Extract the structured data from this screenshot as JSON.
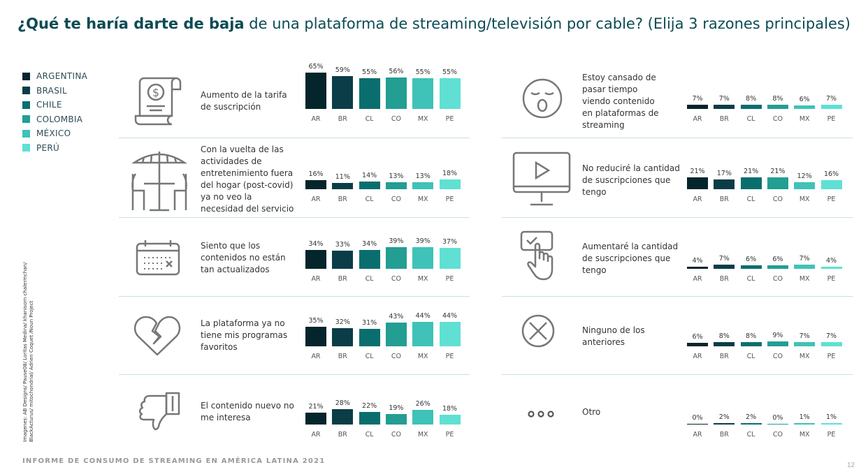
{
  "title": {
    "bold": "¿Qué te haría darte de baja",
    "rest": " de una plataforma de streaming/televisión por cable? (Elija 3 razones principales)"
  },
  "legend": [
    {
      "label": "ARGENTINA",
      "color": "#03252b"
    },
    {
      "label": "BRASIL",
      "color": "#0a3d47"
    },
    {
      "label": "CHILE",
      "color": "#0b6e6e"
    },
    {
      "label": "COLOMBIA",
      "color": "#229e93"
    },
    {
      "label": "MÉXICO",
      "color": "#3fc2b7"
    },
    {
      "label": "PERÚ",
      "color": "#5fe0d3"
    }
  ],
  "categories": [
    "AR",
    "BR",
    "CL",
    "CO",
    "MX",
    "PE"
  ],
  "credits": "Imagenes: AB Designs/ Pause08/ Loritas Medina/ khanisorn chalermchan/ BlackActurus/ mitochondrial/ Adrien Coquet /Noun Project",
  "footer": "INFORME DE CONSUMO DE STREAMING EN AMÉRICA LATINA 2021",
  "page_number": "12",
  "chart_data": [
    {
      "type": "bar",
      "label": "Aumento de la tarifa de suscripción",
      "icon": "dollar-bill-icon",
      "values": [
        65,
        59,
        55,
        56,
        55,
        55
      ],
      "value_labels": [
        "65%",
        "59%",
        "55%",
        "56%",
        "55%",
        "55%"
      ]
    },
    {
      "type": "bar",
      "label": "Con la vuelta de las actividades de entretenimiento fuera del hogar (post-covid) ya no veo la necesidad del servicio",
      "icon": "cafe-table-icon",
      "values": [
        16,
        11,
        14,
        13,
        13,
        18
      ],
      "value_labels": [
        "16%",
        "11%",
        "14%",
        "13%",
        "13%",
        "18%"
      ]
    },
    {
      "type": "bar",
      "label": "Siento que los contenidos no están tan actualizados",
      "icon": "calendar-icon",
      "values": [
        34,
        33,
        34,
        39,
        39,
        37
      ],
      "value_labels": [
        "34%",
        "33%",
        "34%",
        "39%",
        "39%",
        "37%"
      ]
    },
    {
      "type": "bar",
      "label": "La plataforma ya no tiene mis programas favoritos",
      "icon": "broken-heart-icon",
      "values": [
        35,
        32,
        31,
        43,
        44,
        44
      ],
      "value_labels": [
        "35%",
        "32%",
        "31%",
        "43%",
        "44%",
        "44%"
      ]
    },
    {
      "type": "bar",
      "label": "El contenido nuevo no me interesa",
      "icon": "thumbs-down-icon",
      "values": [
        21,
        28,
        22,
        19,
        26,
        18
      ],
      "value_labels": [
        "21%",
        "28%",
        "22%",
        "19%",
        "26%",
        "18%"
      ]
    },
    {
      "type": "bar",
      "label": "Estoy cansado de pasar tiempo viendo contenido en plataformas de streaming",
      "icon": "yawning-face-icon",
      "values": [
        7,
        7,
        8,
        8,
        6,
        7
      ],
      "value_labels": [
        "7%",
        "7%",
        "8%",
        "8%",
        "6%",
        "7%"
      ]
    },
    {
      "type": "bar",
      "label": "No reduciré la cantidad de suscripciones que tengo",
      "icon": "monitor-play-icon",
      "values": [
        21,
        17,
        21,
        21,
        12,
        16
      ],
      "value_labels": [
        "21%",
        "17%",
        "21%",
        "21%",
        "12%",
        "16%"
      ]
    },
    {
      "type": "bar",
      "label": "Aumentaré la cantidad de suscripciones que tengo",
      "icon": "hand-tap-icon",
      "values": [
        4,
        7,
        6,
        6,
        7,
        4
      ],
      "value_labels": [
        "4%",
        "7%",
        "6%",
        "6%",
        "7%",
        "4%"
      ]
    },
    {
      "type": "bar",
      "label": "Ninguno de los anteriores",
      "icon": "x-circle-icon",
      "values": [
        6,
        8,
        8,
        9,
        7,
        7
      ],
      "value_labels": [
        "6%",
        "8%",
        "8%",
        "9%",
        "7%",
        "7%"
      ]
    },
    {
      "type": "bar",
      "label": "Otro",
      "icon": "dots-icon",
      "values": [
        0,
        2,
        2,
        0,
        1,
        1
      ],
      "value_labels": [
        "0%",
        "2%",
        "2%",
        "0%",
        "1%",
        "1%"
      ]
    }
  ]
}
